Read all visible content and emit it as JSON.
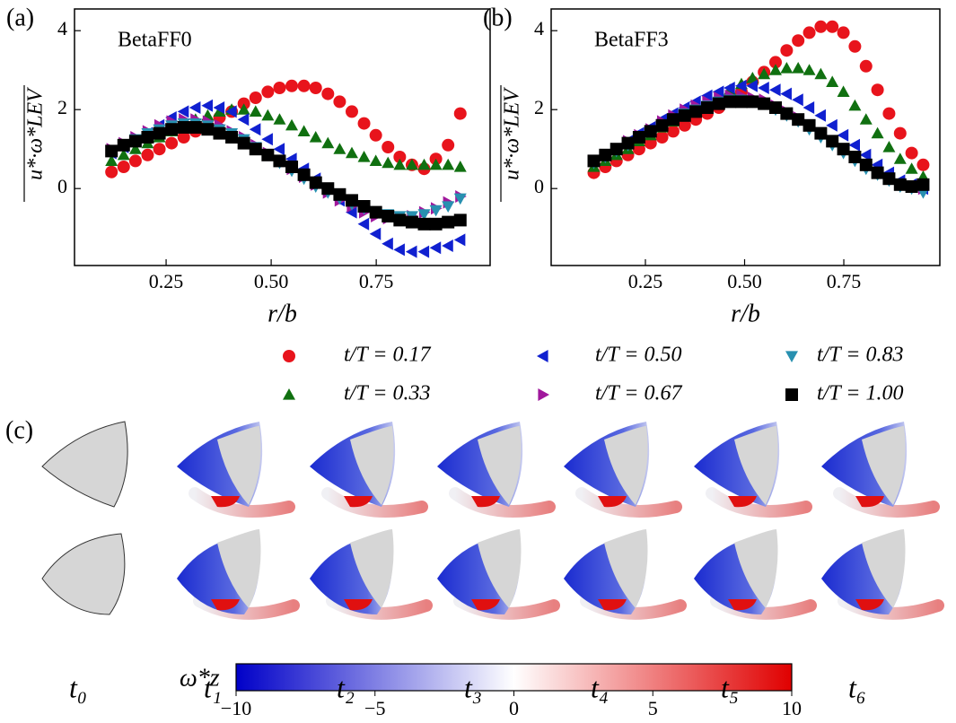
{
  "chart_data": [
    {
      "type": "scatter",
      "panel_label": "(a)",
      "annotation": "BetaFF0",
      "xlabel": "r/b",
      "ylabel": "u*·ω*LEV",
      "xlim": [
        0.032,
        1.021
      ],
      "ylim": [
        -1.95,
        4.55
      ],
      "xticks": [
        0.25,
        {
          "value": 0.5,
          "label": "0.50"
        },
        0.75
      ],
      "yticks": [
        0,
        2,
        4
      ],
      "x": [
        0.12,
        0.149,
        0.177,
        0.206,
        0.234,
        0.263,
        0.292,
        0.32,
        0.349,
        0.377,
        0.406,
        0.435,
        0.463,
        0.492,
        0.52,
        0.549,
        0.578,
        0.606,
        0.635,
        0.663,
        0.692,
        0.721,
        0.749,
        0.778,
        0.806,
        0.835,
        0.864,
        0.892,
        0.921,
        0.95
      ],
      "series": [
        {
          "name": "t/T = 0.17",
          "color": "#e8141c",
          "marker": "circle",
          "values": [
            0.42,
            0.55,
            0.7,
            0.85,
            1.0,
            1.15,
            1.3,
            1.45,
            1.6,
            1.8,
            1.95,
            2.15,
            2.3,
            2.45,
            2.55,
            2.6,
            2.6,
            2.55,
            2.4,
            2.2,
            1.95,
            1.65,
            1.35,
            1.05,
            0.8,
            0.6,
            0.5,
            0.75,
            1.1,
            1.9
          ]
        },
        {
          "name": "t/T = 0.33",
          "color": "#107010",
          "marker": "triangle-up",
          "values": [
            0.7,
            0.85,
            1.0,
            1.15,
            1.3,
            1.45,
            1.6,
            1.75,
            1.85,
            1.95,
            2.0,
            2.0,
            1.95,
            1.85,
            1.75,
            1.6,
            1.45,
            1.3,
            1.15,
            1.0,
            0.9,
            0.8,
            0.7,
            0.65,
            0.6,
            0.6,
            0.6,
            0.6,
            0.6,
            0.55
          ]
        },
        {
          "name": "t/T = 0.50",
          "color": "#1020d0",
          "marker": "triangle-left",
          "values": [
            0.9,
            1.05,
            1.2,
            1.4,
            1.6,
            1.8,
            1.95,
            2.05,
            2.1,
            2.05,
            1.95,
            1.75,
            1.5,
            1.25,
            1.0,
            0.75,
            0.5,
            0.25,
            0.0,
            -0.3,
            -0.6,
            -0.9,
            -1.15,
            -1.4,
            -1.55,
            -1.6,
            -1.6,
            -1.5,
            -1.45,
            -1.3
          ]
        },
        {
          "name": "t/T = 0.67",
          "color": "#a0189c",
          "marker": "triangle-right",
          "values": [
            1.0,
            1.15,
            1.3,
            1.45,
            1.6,
            1.7,
            1.75,
            1.75,
            1.7,
            1.6,
            1.45,
            1.3,
            1.1,
            0.9,
            0.7,
            0.5,
            0.3,
            0.1,
            -0.1,
            -0.3,
            -0.45,
            -0.6,
            -0.7,
            -0.75,
            -0.75,
            -0.7,
            -0.6,
            -0.5,
            -0.35,
            -0.2
          ]
        },
        {
          "name": "t/T = 0.83",
          "color": "#2890b0",
          "marker": "triangle-down",
          "values": [
            0.95,
            1.1,
            1.25,
            1.4,
            1.5,
            1.6,
            1.65,
            1.65,
            1.6,
            1.5,
            1.4,
            1.25,
            1.05,
            0.85,
            0.65,
            0.45,
            0.25,
            0.05,
            -0.1,
            -0.25,
            -0.4,
            -0.5,
            -0.6,
            -0.65,
            -0.7,
            -0.7,
            -0.65,
            -0.55,
            -0.45,
            -0.25
          ]
        },
        {
          "name": "t/T = 1.00",
          "color": "#000000",
          "marker": "square",
          "values": [
            0.95,
            1.1,
            1.2,
            1.3,
            1.4,
            1.5,
            1.55,
            1.55,
            1.5,
            1.4,
            1.3,
            1.15,
            1.0,
            0.85,
            0.7,
            0.55,
            0.35,
            0.15,
            0.0,
            -0.15,
            -0.3,
            -0.45,
            -0.6,
            -0.7,
            -0.8,
            -0.85,
            -0.9,
            -0.9,
            -0.85,
            -0.8
          ]
        }
      ]
    },
    {
      "type": "scatter",
      "panel_label": "(b)",
      "annotation": "BetaFF3",
      "xlabel": "r/b",
      "ylabel": "u*·ω*LEV",
      "xlim": [
        0.0125,
        0.992
      ],
      "ylim": [
        -1.95,
        4.55
      ],
      "xticks": [
        0.25,
        {
          "value": 0.5,
          "label": "0.50"
        },
        0.75
      ],
      "yticks": [
        0,
        2,
        4
      ],
      "x": [
        0.12,
        0.149,
        0.177,
        0.206,
        0.234,
        0.263,
        0.292,
        0.32,
        0.349,
        0.377,
        0.406,
        0.435,
        0.463,
        0.492,
        0.52,
        0.549,
        0.578,
        0.606,
        0.635,
        0.663,
        0.692,
        0.721,
        0.749,
        0.778,
        0.806,
        0.835,
        0.864,
        0.892,
        0.921,
        0.95
      ],
      "series": [
        {
          "name": "t/T = 0.17",
          "color": "#e8141c",
          "marker": "circle",
          "values": [
            0.4,
            0.55,
            0.7,
            0.85,
            1.0,
            1.15,
            1.3,
            1.45,
            1.6,
            1.75,
            1.9,
            2.05,
            2.25,
            2.45,
            2.7,
            2.95,
            3.2,
            3.5,
            3.75,
            3.95,
            4.1,
            4.1,
            3.95,
            3.6,
            3.1,
            2.5,
            1.9,
            1.4,
            0.9,
            0.6
          ]
        },
        {
          "name": "t/T = 0.33",
          "color": "#107010",
          "marker": "triangle-up",
          "values": [
            0.55,
            0.7,
            0.85,
            1.0,
            1.2,
            1.35,
            1.55,
            1.7,
            1.9,
            2.05,
            2.2,
            2.35,
            2.5,
            2.65,
            2.8,
            2.9,
            3.0,
            3.05,
            3.05,
            3.0,
            2.9,
            2.7,
            2.45,
            2.1,
            1.75,
            1.4,
            1.05,
            0.75,
            0.5,
            0.3
          ]
        },
        {
          "name": "t/T = 0.50",
          "color": "#1020d0",
          "marker": "triangle-left",
          "values": [
            0.7,
            0.85,
            1.0,
            1.2,
            1.4,
            1.55,
            1.75,
            1.9,
            2.05,
            2.2,
            2.35,
            2.45,
            2.55,
            2.6,
            2.6,
            2.55,
            2.5,
            2.4,
            2.25,
            2.05,
            1.85,
            1.6,
            1.35,
            1.1,
            0.85,
            0.6,
            0.4,
            0.2,
            0.1,
            0.0
          ]
        },
        {
          "name": "t/T = 0.67",
          "color": "#a0189c",
          "marker": "triangle-right",
          "values": [
            0.7,
            0.85,
            1.0,
            1.2,
            1.35,
            1.5,
            1.7,
            1.85,
            2.0,
            2.1,
            2.2,
            2.3,
            2.35,
            2.35,
            2.3,
            2.25,
            2.1,
            1.95,
            1.8,
            1.6,
            1.4,
            1.2,
            1.0,
            0.8,
            0.6,
            0.4,
            0.25,
            0.1,
            0.05,
            0.0
          ]
        },
        {
          "name": "t/T = 0.83",
          "color": "#2890b0",
          "marker": "triangle-down",
          "values": [
            0.65,
            0.8,
            0.95,
            1.1,
            1.3,
            1.45,
            1.6,
            1.75,
            1.9,
            2.0,
            2.1,
            2.2,
            2.25,
            2.25,
            2.2,
            2.15,
            2.0,
            1.85,
            1.7,
            1.5,
            1.3,
            1.1,
            0.9,
            0.7,
            0.5,
            0.35,
            0.2,
            0.05,
            0.0,
            -0.1
          ]
        },
        {
          "name": "t/T = 1.00",
          "color": "#000000",
          "marker": "square",
          "values": [
            0.7,
            0.85,
            1.0,
            1.15,
            1.3,
            1.45,
            1.6,
            1.75,
            1.85,
            1.95,
            2.05,
            2.15,
            2.2,
            2.2,
            2.2,
            2.15,
            2.05,
            1.9,
            1.75,
            1.6,
            1.4,
            1.2,
            1.0,
            0.8,
            0.6,
            0.4,
            0.25,
            0.1,
            0.05,
            0.1
          ]
        }
      ]
    }
  ],
  "panel_c": {
    "label": "(c)",
    "snapshots": [
      "t₀",
      "t₁",
      "t₂",
      "t₃",
      "t₄",
      "t₅",
      "t₆"
    ]
  },
  "colorbar": {
    "label": "ω*z",
    "lim": [
      -10,
      10
    ],
    "ticks": [
      {
        "value": -10,
        "label": "−10"
      },
      {
        "value": -5,
        "label": "−5"
      },
      0,
      5,
      10
    ]
  }
}
